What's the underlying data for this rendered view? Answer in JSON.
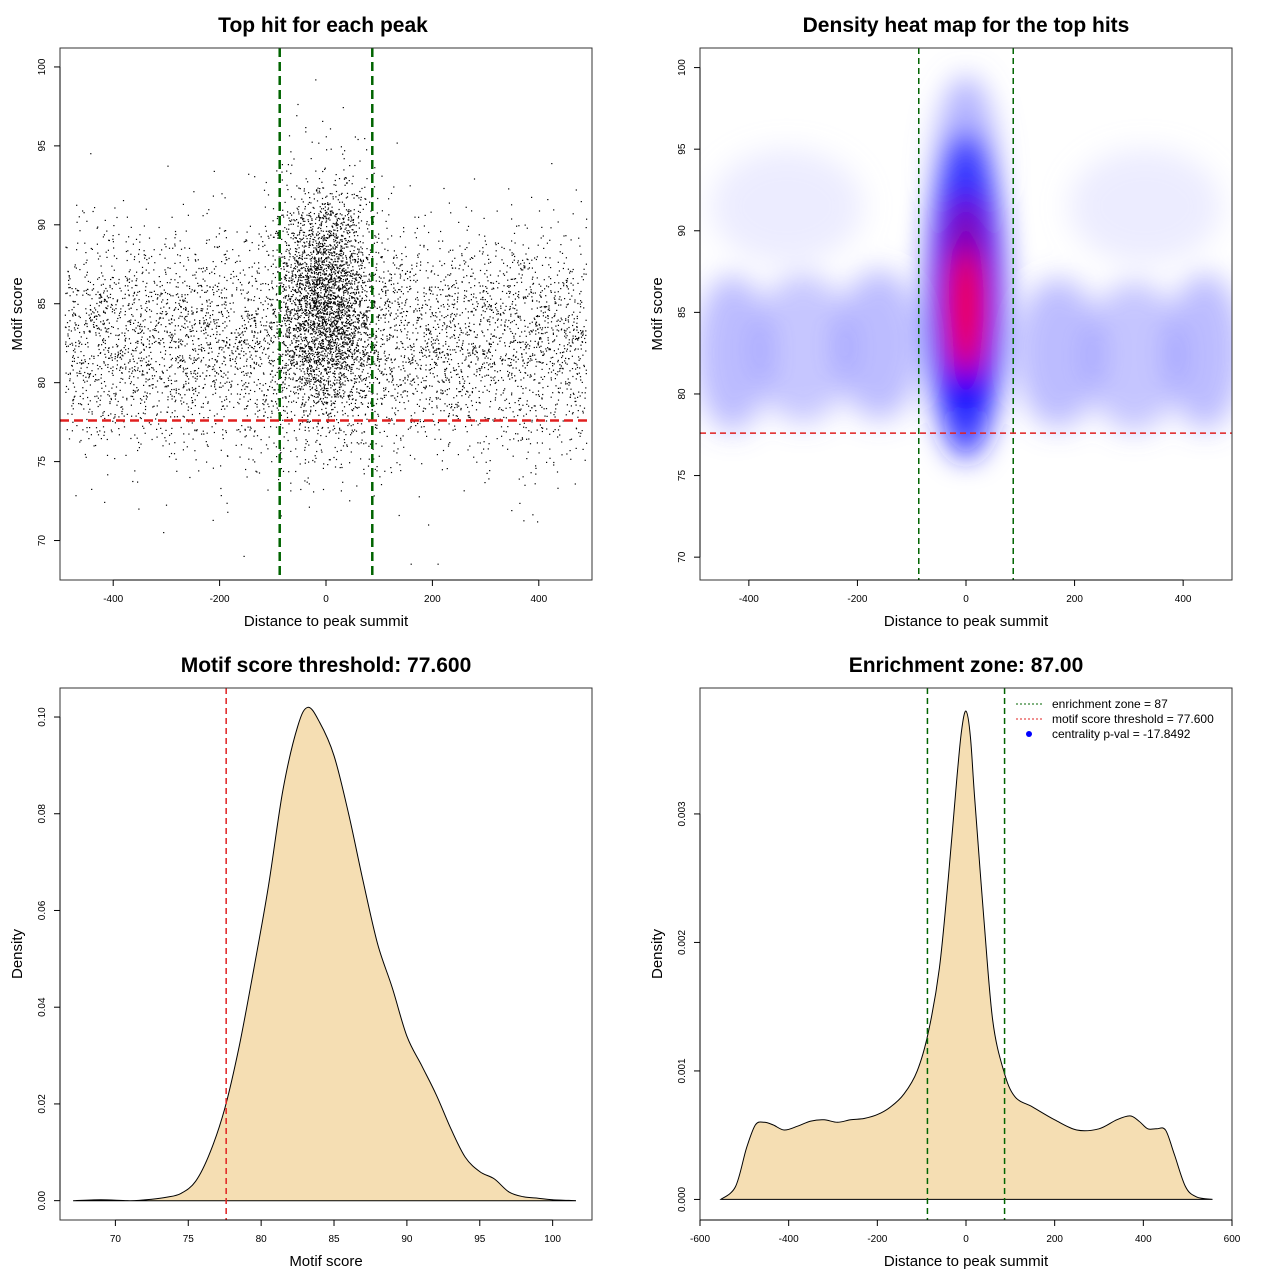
{
  "colors": {
    "points": "#000000",
    "zone_line": "#006400",
    "threshold_line": "#e02020",
    "density_fill": "#f5deb3",
    "heat_low": "#ffffff",
    "heat_mid": "#0000ff",
    "heat_high": "#ff0000",
    "legend_dot": "#0000ff"
  },
  "chart_data": [
    {
      "type": "scatter",
      "title": "Top hit for each peak",
      "xlabel": "Distance to peak summit",
      "ylabel": "Motif score",
      "xlim": [
        -500,
        500
      ],
      "ylim": [
        67.5,
        101.2
      ],
      "xticks": [
        "-400",
        "-200",
        "0",
        "200",
        "400"
      ],
      "xtick_values": [
        -400,
        -200,
        0,
        200,
        400
      ],
      "yticks": [
        "70",
        "75",
        "80",
        "85",
        "90",
        "95",
        "100"
      ],
      "ytick_values": [
        70,
        75,
        80,
        85,
        90,
        95,
        100
      ],
      "vlines": [
        -87,
        87
      ],
      "hline": 77.6,
      "grid": false,
      "point_cloud": {
        "background": {
          "n": 5200,
          "x_range": [
            -490,
            490
          ],
          "y_mean": 82.5,
          "y_sd": 3.5
        },
        "center": {
          "n": 3000,
          "x_mean": 0,
          "x_sd": 45,
          "y_mean": 85.2,
          "y_sd": 3.7
        }
      }
    },
    {
      "type": "heatmap",
      "title": "Density heat map for the top hits",
      "xlabel": "Distance to peak summit",
      "ylabel": "Motif score",
      "xlim": [
        -490,
        490
      ],
      "ylim": [
        68.6,
        101.2
      ],
      "xticks": [
        "-400",
        "-200",
        "0",
        "200",
        "400"
      ],
      "xtick_values": [
        -400,
        -200,
        0,
        200,
        400
      ],
      "yticks": [
        "70",
        "75",
        "80",
        "85",
        "90",
        "95",
        "100"
      ],
      "ytick_values": [
        70,
        75,
        80,
        85,
        90,
        95,
        100
      ],
      "vlines": [
        -87,
        87
      ],
      "hline": 77.6,
      "peak": {
        "x": 0,
        "y": 85
      }
    },
    {
      "type": "area",
      "title": "Motif score threshold: 77.600",
      "xlabel": "Motif score",
      "ylabel": "Density",
      "xlim": [
        66.2,
        102.7
      ],
      "ylim": [
        -0.004,
        0.106
      ],
      "xticks": [
        "70",
        "75",
        "80",
        "85",
        "90",
        "95",
        "100"
      ],
      "xtick_values": [
        70,
        75,
        80,
        85,
        90,
        95,
        100
      ],
      "yticks": [
        "0.00",
        "0.02",
        "0.04",
        "0.06",
        "0.08",
        "0.10"
      ],
      "ytick_values": [
        0,
        0.02,
        0.04,
        0.06,
        0.08,
        0.1
      ],
      "vline": 77.6,
      "x": [
        67.1,
        69,
        71,
        72.5,
        73.5,
        74.5,
        75.5,
        76.5,
        77.5,
        78.5,
        79.5,
        80.5,
        81.5,
        82.5,
        83.2,
        84,
        85,
        86,
        87,
        88,
        89,
        90,
        91,
        92,
        93,
        94,
        95,
        96,
        97,
        98,
        99,
        100,
        101.6
      ],
      "y": [
        0,
        0.0002,
        0,
        0.0003,
        0.0007,
        0.0015,
        0.004,
        0.01,
        0.019,
        0.032,
        0.048,
        0.065,
        0.085,
        0.098,
        0.102,
        0.099,
        0.092,
        0.08,
        0.066,
        0.053,
        0.044,
        0.034,
        0.028,
        0.022,
        0.015,
        0.009,
        0.006,
        0.0045,
        0.0018,
        0.0008,
        0.0005,
        0.0002,
        0
      ]
    },
    {
      "type": "area",
      "title": "Enrichment zone: 87.00",
      "xlabel": "Distance to peak summit",
      "ylabel": "Density",
      "xlim": [
        -600,
        600
      ],
      "ylim": [
        -0.00016,
        0.00398
      ],
      "xticks": [
        "-600",
        "-400",
        "-200",
        "0",
        "200",
        "400",
        "600"
      ],
      "xtick_values": [
        -600,
        -400,
        -200,
        0,
        200,
        400,
        600
      ],
      "yticks": [
        "0.000",
        "0.001",
        "0.002",
        "0.003"
      ],
      "ytick_values": [
        0,
        0.001,
        0.002,
        0.003
      ],
      "vlines": [
        -87,
        87
      ],
      "x": [
        -553,
        -520,
        -495,
        -475,
        -455,
        -435,
        -410,
        -380,
        -350,
        -320,
        -290,
        -260,
        -230,
        -200,
        -170,
        -140,
        -110,
        -85,
        -60,
        -40,
        -20,
        -10,
        0,
        10,
        20,
        40,
        60,
        85,
        110,
        150,
        200,
        250,
        300,
        340,
        370,
        390,
        410,
        430,
        450,
        470,
        495,
        520,
        556
      ],
      "y": [
        0,
        0.0001,
        0.0004,
        0.00058,
        0.0006,
        0.00058,
        0.00054,
        0.00057,
        0.00061,
        0.00062,
        0.0006,
        0.00062,
        0.00063,
        0.00066,
        0.00072,
        0.00082,
        0.001,
        0.0013,
        0.0018,
        0.0025,
        0.0033,
        0.00365,
        0.0038,
        0.0036,
        0.0031,
        0.0022,
        0.0014,
        0.001,
        0.0008,
        0.00072,
        0.00062,
        0.00054,
        0.00055,
        0.00062,
        0.00065,
        0.00061,
        0.00055,
        0.00055,
        0.00054,
        0.00035,
        0.0001,
        2e-05,
        0
      ],
      "legend": {
        "placement": "top-right",
        "entries": [
          {
            "label": "enrichment zone = 87",
            "style": "dotted-line",
            "color": "#006400"
          },
          {
            "label": "motif score threshold = 77.600",
            "style": "dotted-line",
            "color": "#e02020"
          },
          {
            "label": "centrality p-val = -17.8492",
            "style": "dot",
            "color": "#0000ff"
          }
        ]
      }
    }
  ]
}
